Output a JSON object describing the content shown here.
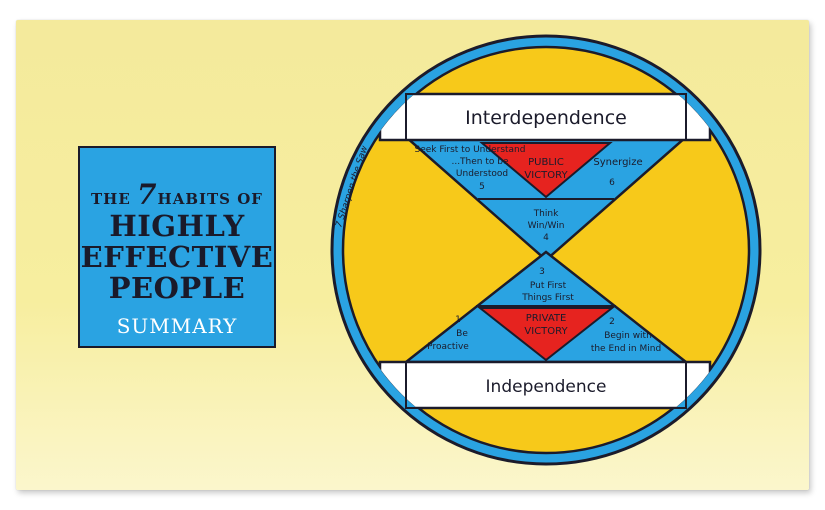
{
  "book": {
    "line1_a": "THE",
    "line1_b": "7",
    "line1_c": "HABITS OF",
    "line2": "HIGHLY",
    "line3": "EFFECTIVE",
    "line4": "PEOPLE",
    "line5": "SUMMARY"
  },
  "diagram": {
    "top_banner": "Interdependence",
    "bottom_banner": "Independence",
    "public_victory": [
      "PUBLIC",
      "VICTORY"
    ],
    "private_victory": [
      "PRIVATE",
      "VICTORY"
    ],
    "sharpen_the_saw": "7 Sharpen the Saw",
    "habits": {
      "h5": [
        "Seek First to Understand",
        "...Then to be",
        "Understood"
      ],
      "h5_num": "5",
      "h6": "Synergize",
      "h6_num": "6",
      "h4": [
        "Think",
        "Win/Win"
      ],
      "h4_num": "4",
      "h3_num": "3",
      "h3": [
        "Put First",
        "Things First"
      ],
      "h1_num": "1",
      "h1": [
        "Be",
        "Proactive"
      ],
      "h2_num": "2",
      "h2": [
        "Begin with",
        "the End in Mind"
      ]
    }
  },
  "colors": {
    "note": "#f6ec9e",
    "blue": "#2aa3e2",
    "yellow": "#f7c91a",
    "red": "#e6231f",
    "ink": "#1b1b2b",
    "white": "#ffffff"
  }
}
